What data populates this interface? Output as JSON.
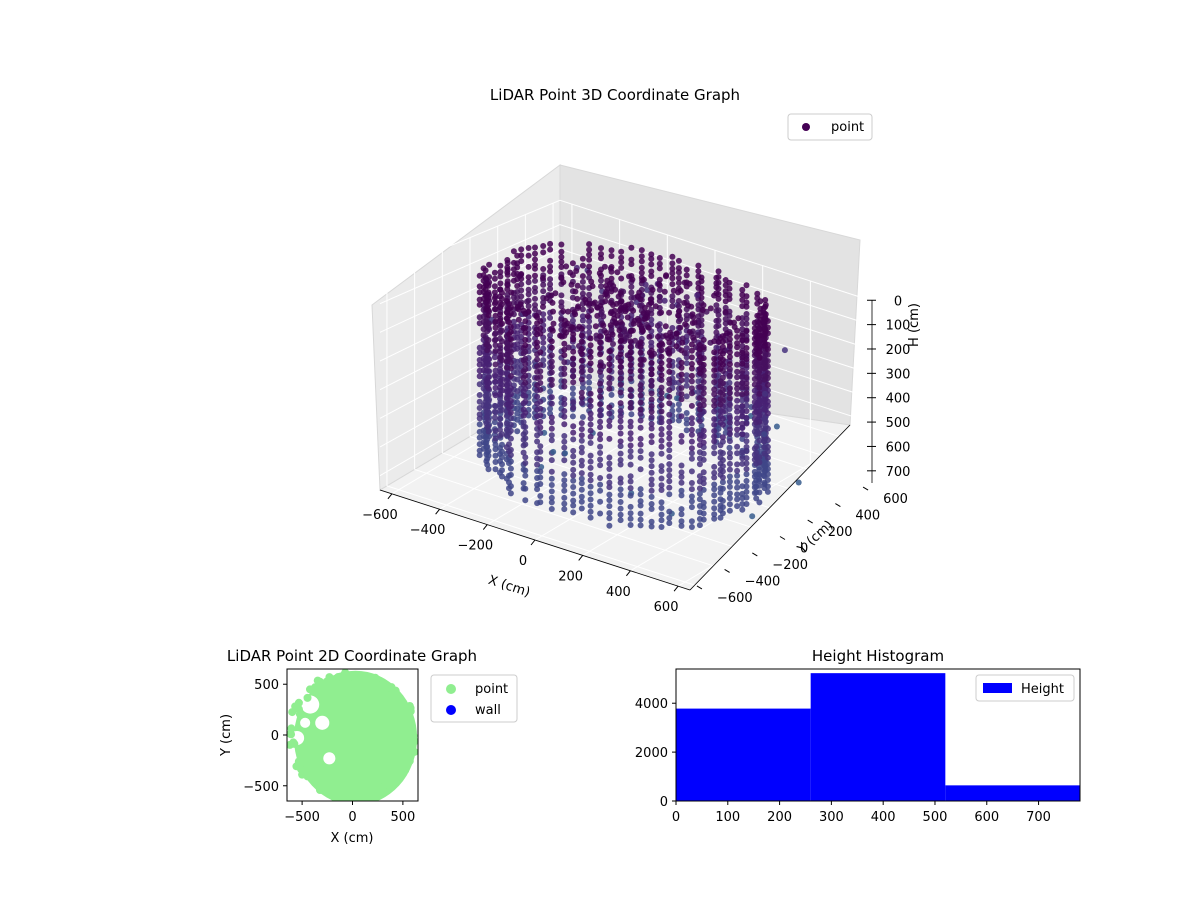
{
  "chart_data": [
    {
      "type": "scatter",
      "projection": "3d",
      "title": "LiDAR Point 3D Coordinate Graph",
      "xlabel": "X (cm)",
      "ylabel": "Y (cm)",
      "zlabel": "H (cm)",
      "xlim": [
        -650,
        650
      ],
      "ylim": [
        -650,
        650
      ],
      "zlim": [
        750,
        0
      ],
      "xticks": [
        -600,
        -400,
        -200,
        0,
        200,
        400,
        600
      ],
      "yticks": [
        -600,
        -400,
        -200,
        0,
        200,
        400,
        600
      ],
      "zticks": [
        0,
        100,
        200,
        300,
        400,
        500,
        600,
        700
      ],
      "legend": {
        "placement": "top-right",
        "entries": [
          "point"
        ]
      },
      "colormap": [
        "#440154",
        "#482878",
        "#3e4989",
        "#31688e",
        "#26828e"
      ],
      "grid": true,
      "series": [
        {
          "name": "point",
          "shape": "cylindrical wall of points around the room perimeter",
          "radius_range": [
            430,
            560
          ],
          "height_range": [
            0,
            700
          ],
          "points_approx": 9700
        }
      ]
    },
    {
      "type": "scatter",
      "title": "LiDAR Point 2D Coordinate Graph",
      "xlabel": "X (cm)",
      "ylabel": "Y (cm)",
      "xlim": [
        -650,
        650
      ],
      "ylim": [
        -650,
        650
      ],
      "xticks": [
        -500,
        0,
        500
      ],
      "yticks": [
        -500,
        0,
        500
      ],
      "legend": {
        "placement": "outside-right",
        "entries": [
          "point",
          "wall"
        ]
      },
      "colors": {
        "point": "#90ee90",
        "wall": "#0000ff"
      },
      "series": [
        {
          "name": "point",
          "shape": "filled disk of radius ~620 cm with gaps on the left"
        },
        {
          "name": "wall",
          "points": []
        }
      ]
    },
    {
      "type": "bar",
      "subtype": "histogram",
      "title": "Height Histogram",
      "xlim": [
        0,
        780
      ],
      "ylim": [
        0,
        5400
      ],
      "xticks": [
        0,
        100,
        200,
        300,
        400,
        500,
        600,
        700
      ],
      "yticks": [
        0,
        2000,
        4000
      ],
      "bin_edges": [
        0,
        260,
        520,
        780
      ],
      "values": [
        3780,
        5230,
        640
      ],
      "legend": {
        "placement": "top-right",
        "entries": [
          "Height"
        ]
      },
      "colors": {
        "Height": "#0000ff"
      },
      "series": [
        {
          "name": "Height",
          "values": [
            3780,
            5230,
            640
          ]
        }
      ]
    }
  ]
}
